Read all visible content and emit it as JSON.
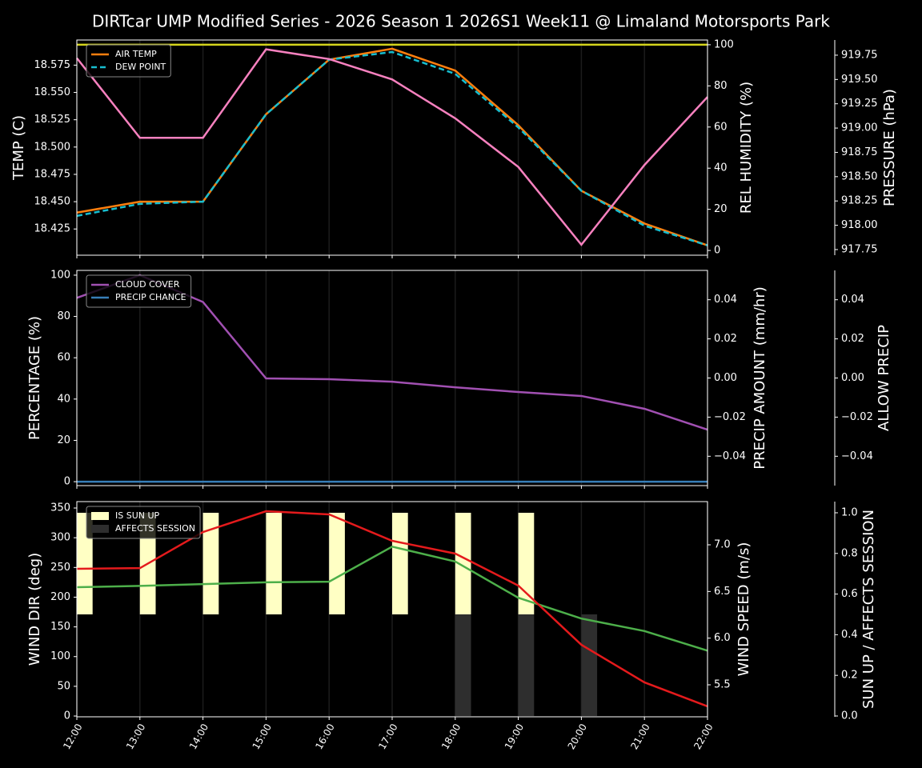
{
  "title": "DIRTcar UMP Modified Series - 2026 Season 1 2026S1 Week11 @ Limaland Motorsports Park",
  "chart_data": [
    {
      "type": "line",
      "grid": true,
      "legend": "upper left",
      "ylabel": "TEMP (C)",
      "ylabel_color": "#ffffff",
      "ylim": [
        18.401,
        18.598
      ],
      "yticks": [
        18.425,
        {
          "value": 18.45,
          "label": "18.450"
        },
        18.475,
        {
          "value": 18.5,
          "label": "18.500"
        },
        18.525,
        {
          "value": 18.55,
          "label": "18.550"
        },
        18.575
      ],
      "y2label": "REL HUMIDITY (%)",
      "y2label_color": "#d4d41c",
      "y2lim": [
        -2.3,
        102.3
      ],
      "y2ticks": [
        0,
        20,
        40,
        60,
        80,
        100
      ],
      "y3label": "PRESSURE (hPa)",
      "y3label_color": "#f781bf",
      "y3lim": [
        917.692,
        919.906
      ],
      "y3ticks": [
        917.75,
        {
          "value": 918,
          "label": "918.00"
        },
        918.25,
        {
          "value": 918.5,
          "label": "918.50"
        },
        918.75,
        {
          "value": 919,
          "label": "919.00"
        },
        919.25,
        {
          "value": 919.5,
          "label": "919.50"
        },
        919.75
      ],
      "series": [
        {
          "name": "AIR TEMP",
          "type": "line",
          "axis": "y",
          "color": "#ff7f0e",
          "values": [
            18.44,
            18.45,
            18.45,
            18.53,
            18.58,
            18.59,
            18.57,
            18.52,
            18.46,
            18.43,
            18.41
          ]
        },
        {
          "name": "DEW POINT",
          "type": "line",
          "axis": "y",
          "color": "#17becf",
          "dashed": true,
          "values": [
            18.437,
            18.448,
            18.45,
            18.53,
            18.58,
            18.587,
            18.567,
            18.518,
            18.46,
            18.428,
            18.41
          ]
        },
        {
          "type": "line",
          "axis": "y2",
          "color": "#d4d41c",
          "values": [
            100,
            100,
            100,
            100,
            100,
            100,
            100,
            100,
            100,
            100,
            100
          ]
        },
        {
          "type": "line",
          "axis": "y3",
          "color": "#f781bf",
          "values": [
            919.72,
            918.9,
            918.9,
            919.81,
            919.71,
            919.5,
            919.1,
            918.6,
            917.8,
            918.62,
            919.32
          ]
        }
      ]
    },
    {
      "type": "line",
      "grid": true,
      "legend": "upper left",
      "ylabel": "PERCENTAGE (%)",
      "ylabel_color": "#ffffff",
      "ylim": [
        -1.9,
        102.3
      ],
      "yticks": [
        0,
        20,
        40,
        60,
        80,
        100
      ],
      "y2label": "PRECIP AMOUNT (mm/hr)",
      "y2label_color": "#b0603a",
      "y2lim": [
        -0.055,
        0.055
      ],
      "y2ticks": [
        {
          "value": -0.04,
          "label": "−0.04"
        },
        {
          "value": -0.02,
          "label": "−0.02"
        },
        {
          "value": 0,
          "label": "0.00"
        },
        0.02,
        0.04
      ],
      "y3label": "ALLOW PRECIP",
      "y3label_color": "#ffffff",
      "y3lim": [
        -0.055,
        0.055
      ],
      "y3ticks": [
        {
          "value": -0.04,
          "label": "−0.04"
        },
        {
          "value": -0.02,
          "label": "−0.02"
        },
        {
          "value": 0,
          "label": "0.00"
        },
        0.02,
        0.04
      ],
      "series": [
        {
          "name": "CLOUD COVER",
          "type": "line",
          "axis": "y",
          "color": "#a150b2",
          "values": [
            89,
            100,
            87,
            50,
            49.6,
            48.4,
            45.7,
            43.4,
            41.5,
            35.3,
            25.2
          ]
        },
        {
          "name": "PRECIP CHANCE",
          "type": "line",
          "axis": "y",
          "color": "#377eb8",
          "values": [
            0,
            0,
            0,
            0,
            0,
            0,
            0,
            0,
            0,
            0,
            0
          ]
        }
      ]
    },
    {
      "type": "line",
      "grid": true,
      "legend": "upper left",
      "categories": [
        "12:00",
        "13:00",
        "14:00",
        "15:00",
        "16:00",
        "17:00",
        "18:00",
        "19:00",
        "20:00",
        "21:00",
        "22:00"
      ],
      "ylabel": "WIND DIR (deg)",
      "ylabel_color": "#4daf4a",
      "ylim": [
        -1.3,
        360.8
      ],
      "yticks": [
        0,
        50,
        100,
        150,
        200,
        250,
        300,
        350
      ],
      "y2label": "WIND SPEED (m/s)",
      "y2label_color": "#e41a1c",
      "y2lim": [
        5.157,
        7.463
      ],
      "y2ticks": [
        5.5,
        {
          "value": 6,
          "label": "6.0"
        },
        6.5,
        {
          "value": 7,
          "label": "7.0"
        }
      ],
      "y3label": "SUN UP / AFFECTS SESSION",
      "y3label_color": "#ffffff",
      "y3lim": [
        -0.004,
        1.055
      ],
      "y3ticks": [
        {
          "value": 0,
          "label": "0.0"
        },
        0.2,
        0.4,
        0.6,
        0.8,
        {
          "value": 1,
          "label": "1.0"
        }
      ],
      "series": [
        {
          "name": "IS SUN UP",
          "type": "sunbar",
          "axis": "y3",
          "color": "#ffffc4",
          "values": [
            1,
            1,
            1,
            1,
            1,
            1,
            1,
            1,
            0,
            0,
            0
          ]
        },
        {
          "name": "AFFECTS SESSION",
          "type": "bar",
          "axis": "y3",
          "color": "#2e2e2e",
          "values": [
            0,
            0,
            0,
            0,
            0,
            0,
            0.5,
            0.5,
            0.5,
            0,
            0
          ]
        },
        {
          "type": "line",
          "axis": "y",
          "color": "#4daf4a",
          "values": [
            216.7,
            219,
            222,
            225,
            226,
            285,
            260,
            199,
            164,
            143,
            110
          ]
        },
        {
          "type": "line",
          "axis": "y2",
          "color": "#e41a1c",
          "values": [
            6.743,
            6.75,
            7.137,
            7.36,
            7.326,
            7.043,
            6.906,
            6.563,
            5.929,
            5.526,
            5.269
          ]
        }
      ]
    }
  ]
}
